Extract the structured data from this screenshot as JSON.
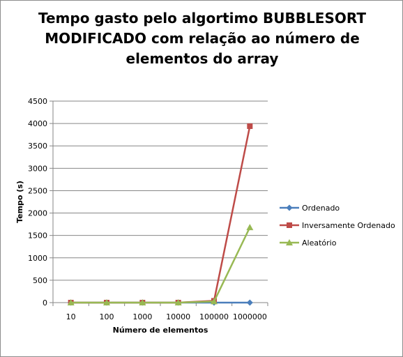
{
  "chart_data": {
    "type": "line",
    "title_lines": [
      "Tempo gasto pelo algortimo BUBBLESORT",
      "MODIFICADO com relação ao número de",
      "elementos do array"
    ],
    "xlabel": "Número de elementos",
    "ylabel": "Tempo (s)",
    "categories": [
      "10",
      "100",
      "1000",
      "10000",
      "100000",
      "1000000"
    ],
    "ylim": [
      0,
      4500
    ],
    "yticks": [
      "0",
      "500",
      "1000",
      "1500",
      "2000",
      "2500",
      "3000",
      "3500",
      "4000",
      "4500"
    ],
    "grid": "horizontal",
    "legend_position": "right",
    "series": [
      {
        "name": "Ordenado",
        "color": "#4a7ebb",
        "marker": "diamond",
        "values": [
          0,
          0,
          0,
          0,
          0,
          0
        ]
      },
      {
        "name": "Inversamente Ordenado",
        "color": "#be4b48",
        "marker": "square",
        "values": [
          0,
          0,
          0,
          0,
          40,
          3940
        ]
      },
      {
        "name": "Aleatório",
        "color": "#98b954",
        "marker": "triangle",
        "values": [
          0,
          0,
          0,
          0,
          25,
          1680
        ]
      }
    ]
  }
}
